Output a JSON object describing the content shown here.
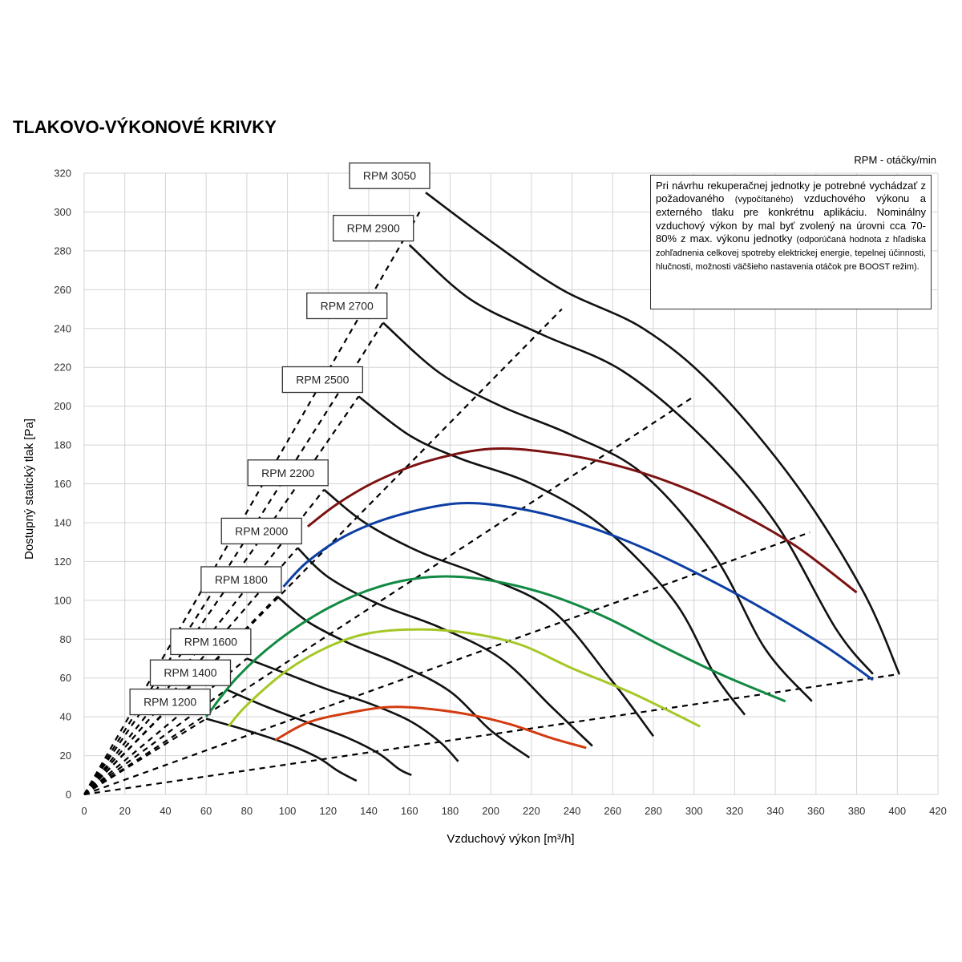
{
  "title": "TLAKOVO-VÝKONOVÉ KRIVKY",
  "rpm_unit_label": "RPM - otáčky/min",
  "note": {
    "p1": "Pri návrhu rekuperačnej jednotky je potrebné vychádzať z požadovaného",
    "p1_small": "(vypočítaného)",
    "p2": "vzduchového výkonu a externého tlaku pre konkrétnu aplikáciu. Nominálny vzduchový výkon by mal byť zvolený na úrovni cca 70-80% z max. výkonu jednotky",
    "p2_small": "(odporúčaná hodnota z hľadiska zohľadnenia celkovej spotreby elektrickej energie, tepelnej účinnosti, hlučnosti, možnosti väčšieho nastavenia otáčok pre BOOST režim)."
  },
  "chart_data": {
    "type": "line",
    "xlabel": "Vzduchový výkon [m³/h]",
    "ylabel": "Dostupný statický tlak [Pa]",
    "xlim": [
      0,
      420
    ],
    "ylim": [
      0,
      320
    ],
    "xticks": [
      "0",
      "20",
      "40",
      "60",
      "80",
      "100",
      "120",
      "140",
      "160",
      "180",
      "200",
      "220",
      "240",
      "260",
      "280",
      "300",
      "320",
      "340",
      "360",
      "380",
      "400",
      "420"
    ],
    "yticks": [
      "0",
      "20",
      "40",
      "60",
      "80",
      "100",
      "120",
      "140",
      "160",
      "180",
      "200",
      "220",
      "240",
      "260",
      "280",
      "300",
      "320"
    ],
    "grid": true,
    "rpm_curves": [
      {
        "label": "RPM 1200",
        "points": [
          [
            60,
            39
          ],
          [
            80,
            33
          ],
          [
            100,
            26
          ],
          [
            115,
            19
          ],
          [
            125,
            12
          ],
          [
            134,
            7
          ]
        ]
      },
      {
        "label": "RPM 1400",
        "points": [
          [
            70,
            54
          ],
          [
            90,
            45
          ],
          [
            110,
            37
          ],
          [
            130,
            29
          ],
          [
            145,
            21
          ],
          [
            155,
            13
          ],
          [
            161,
            10
          ]
        ]
      },
      {
        "label": "RPM 1600",
        "points": [
          [
            80,
            70
          ],
          [
            100,
            62
          ],
          [
            120,
            54
          ],
          [
            140,
            47
          ],
          [
            160,
            38
          ],
          [
            175,
            27
          ],
          [
            184,
            17
          ]
        ]
      },
      {
        "label": "RPM 1800",
        "points": [
          [
            95,
            102
          ],
          [
            110,
            89
          ],
          [
            130,
            78
          ],
          [
            155,
            67
          ],
          [
            180,
            53
          ],
          [
            200,
            33
          ],
          [
            219,
            19
          ]
        ]
      },
      {
        "label": "RPM 2000",
        "points": [
          [
            105,
            127
          ],
          [
            120,
            112
          ],
          [
            145,
            98
          ],
          [
            175,
            86
          ],
          [
            205,
            70
          ],
          [
            230,
            45
          ],
          [
            250,
            25
          ]
        ]
      },
      {
        "label": "RPM 2200",
        "points": [
          [
            118,
            157
          ],
          [
            138,
            140
          ],
          [
            165,
            125
          ],
          [
            195,
            113
          ],
          [
            230,
            95
          ],
          [
            260,
            58
          ],
          [
            280,
            30
          ]
        ]
      },
      {
        "label": "RPM 2500",
        "points": [
          [
            135,
            205
          ],
          [
            160,
            185
          ],
          [
            185,
            173
          ],
          [
            220,
            160
          ],
          [
            255,
            138
          ],
          [
            290,
            100
          ],
          [
            310,
            62
          ],
          [
            325,
            41
          ]
        ]
      },
      {
        "label": "RPM 2700",
        "points": [
          [
            147,
            243
          ],
          [
            175,
            217
          ],
          [
            205,
            200
          ],
          [
            240,
            185
          ],
          [
            275,
            165
          ],
          [
            310,
            123
          ],
          [
            335,
            75
          ],
          [
            358,
            48
          ]
        ]
      },
      {
        "label": "RPM 2900",
        "points": [
          [
            160,
            283
          ],
          [
            190,
            255
          ],
          [
            225,
            237
          ],
          [
            265,
            218
          ],
          [
            305,
            183
          ],
          [
            340,
            140
          ],
          [
            370,
            85
          ],
          [
            388,
            62
          ]
        ]
      },
      {
        "label": "RPM 3050",
        "points": [
          [
            168,
            310
          ],
          [
            200,
            285
          ],
          [
            235,
            260
          ],
          [
            275,
            240
          ],
          [
            310,
            210
          ],
          [
            350,
            160
          ],
          [
            383,
            105
          ],
          [
            401,
            62
          ]
        ]
      }
    ],
    "efficiency_curves": [
      {
        "color": "#d23c10",
        "points": [
          [
            94,
            28
          ],
          [
            110,
            37
          ],
          [
            130,
            42
          ],
          [
            150,
            45
          ],
          [
            170,
            44
          ],
          [
            190,
            41
          ],
          [
            210,
            36
          ],
          [
            230,
            29
          ],
          [
            247,
            24
          ]
        ]
      },
      {
        "color": "#a5c827",
        "points": [
          [
            71,
            35
          ],
          [
            80,
            46
          ],
          [
            100,
            64
          ],
          [
            120,
            76
          ],
          [
            140,
            83
          ],
          [
            165,
            85
          ],
          [
            190,
            83
          ],
          [
            215,
            77
          ],
          [
            240,
            65
          ],
          [
            270,
            52
          ],
          [
            303,
            35
          ]
        ]
      },
      {
        "color": "#118a43",
        "points": [
          [
            60,
            40
          ],
          [
            75,
            60
          ],
          [
            95,
            79
          ],
          [
            120,
            96
          ],
          [
            145,
            107
          ],
          [
            170,
            112
          ],
          [
            195,
            111
          ],
          [
            225,
            104
          ],
          [
            255,
            92
          ],
          [
            285,
            76
          ],
          [
            315,
            61
          ],
          [
            345,
            48
          ]
        ]
      },
      {
        "color": "#0d3ea3",
        "points": [
          [
            98,
            107
          ],
          [
            110,
            120
          ],
          [
            130,
            134
          ],
          [
            155,
            144
          ],
          [
            185,
            150
          ],
          [
            215,
            147
          ],
          [
            245,
            139
          ],
          [
            275,
            127
          ],
          [
            305,
            112
          ],
          [
            335,
            95
          ],
          [
            365,
            76
          ],
          [
            388,
            59
          ]
        ]
      },
      {
        "color": "#7c1111",
        "points": [
          [
            110,
            138
          ],
          [
            125,
            150
          ],
          [
            145,
            162
          ],
          [
            170,
            172
          ],
          [
            200,
            178
          ],
          [
            230,
            176
          ],
          [
            260,
            170
          ],
          [
            290,
            160
          ],
          [
            320,
            146
          ],
          [
            350,
            128
          ],
          [
            380,
            104
          ]
        ]
      }
    ],
    "dashed_lines": [
      [
        [
          0,
          0
        ],
        [
          165,
          300
        ]
      ],
      [
        [
          0,
          0
        ],
        [
          147,
          243
        ]
      ],
      [
        [
          0,
          0
        ],
        [
          135,
          205
        ]
      ],
      [
        [
          0,
          0
        ],
        [
          118,
          157
        ]
      ],
      [
        [
          0,
          0
        ],
        [
          105,
          127
        ]
      ],
      [
        [
          0,
          0
        ],
        [
          95,
          102
        ]
      ],
      [
        [
          0,
          0
        ],
        [
          80,
          70
        ]
      ],
      [
        [
          0,
          0
        ],
        [
          70,
          54
        ]
      ],
      [
        [
          0,
          0
        ],
        [
          60,
          39
        ]
      ],
      [
        [
          0,
          0
        ],
        [
          235,
          250
        ]
      ],
      [
        [
          0,
          0
        ],
        [
          300,
          205
        ]
      ],
      [
        [
          0,
          0
        ],
        [
          357,
          135
        ]
      ],
      [
        [
          0,
          0
        ],
        [
          401,
          62
        ]
      ]
    ]
  }
}
